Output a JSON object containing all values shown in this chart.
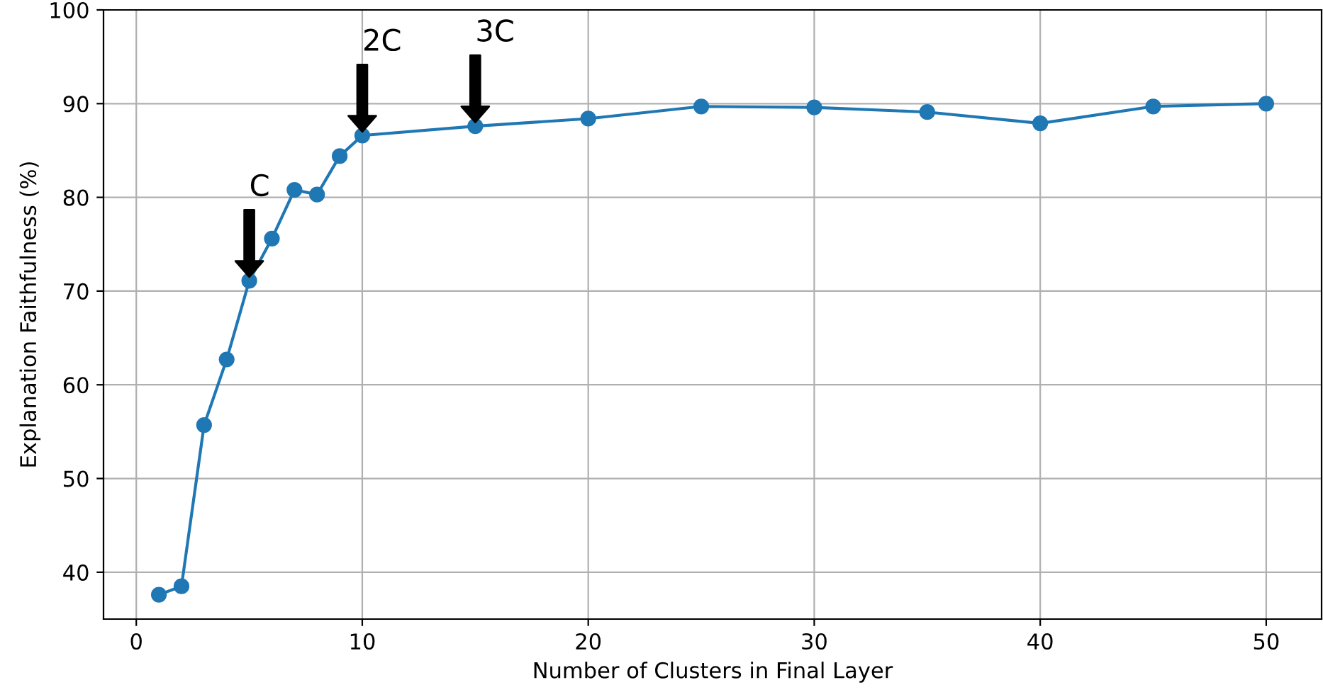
{
  "chart_data": {
    "type": "line",
    "xlabel": "Number of Clusters in Final Layer",
    "ylabel": "Explanation Faithfulness (%)",
    "x": [
      1,
      2,
      3,
      4,
      5,
      6,
      7,
      8,
      9,
      10,
      15,
      20,
      25,
      30,
      35,
      40,
      45,
      50
    ],
    "series": [
      {
        "color": "#1f77b4",
        "values": [
          37.6,
          38.5,
          55.7,
          62.7,
          71.1,
          75.6,
          80.8,
          80.3,
          84.4,
          86.6,
          87.6,
          88.4,
          89.7,
          89.6,
          89.1,
          87.9,
          89.7,
          90.0
        ]
      }
    ],
    "xlim": [
      -1.45,
      52.45
    ],
    "xticks": [
      0,
      10,
      20,
      30,
      40,
      50
    ],
    "ylim": [
      35,
      100
    ],
    "yticks": [
      40,
      50,
      60,
      70,
      80,
      90,
      100
    ],
    "grid": true,
    "marker": "circle",
    "line_style": "solid",
    "annotations": [
      {
        "text": "C",
        "x": 5,
        "y": 71.1
      },
      {
        "text": "2C",
        "x": 10,
        "y": 86.6
      },
      {
        "text": "3C",
        "x": 15,
        "y": 87.6
      }
    ]
  }
}
